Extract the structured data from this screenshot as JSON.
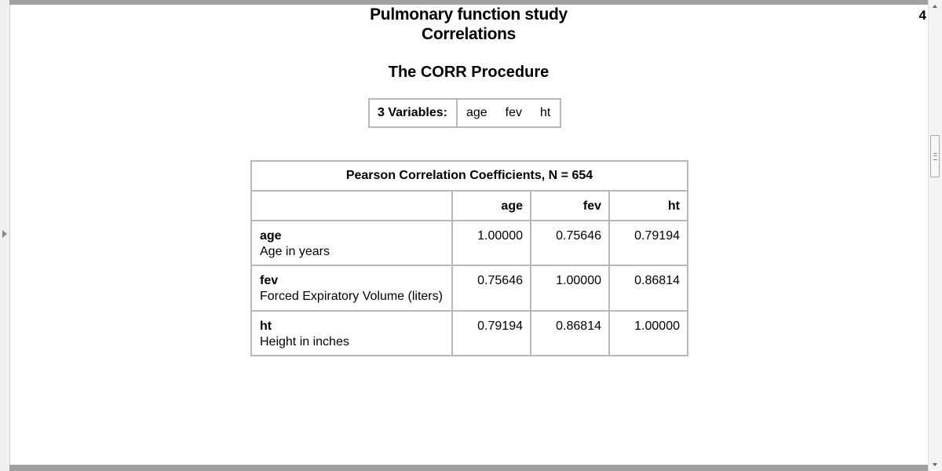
{
  "report": {
    "title1": "Pulmonary function study",
    "title2": "Correlations",
    "page_number": "4",
    "procedure_title": "The CORR Procedure"
  },
  "variables": {
    "label": "3  Variables:",
    "names": [
      "age",
      "fev",
      "ht"
    ]
  },
  "correlation_table": {
    "caption": "Pearson Correlation Coefficients, N = 654",
    "columns": [
      "age",
      "fev",
      "ht"
    ],
    "rows": [
      {
        "name": "age",
        "label": "Age in years",
        "values": [
          "1.00000",
          "0.75646",
          "0.79194"
        ]
      },
      {
        "name": "fev",
        "label": "Forced Expiratory Volume (liters)",
        "values": [
          "0.75646",
          "1.00000",
          "0.86814"
        ]
      },
      {
        "name": "ht",
        "label": "Height in inches",
        "values": [
          "0.79194",
          "0.86814",
          "1.00000"
        ]
      }
    ]
  }
}
